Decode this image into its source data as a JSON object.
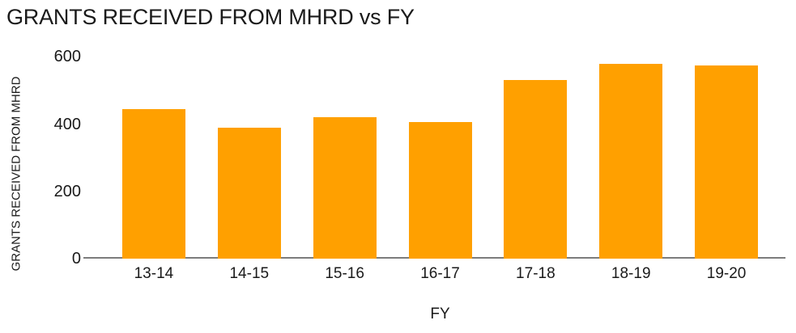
{
  "chart_data": {
    "type": "bar",
    "title": "GRANTS RECEIVED FROM MHRD vs FY",
    "xlabel": "FY",
    "ylabel": "GRANTS RECEIVED FROM MHRD",
    "categories": [
      "13-14",
      "14-15",
      "15-16",
      "16-17",
      "17-18",
      "18-19",
      "19-20"
    ],
    "values": [
      445,
      390,
      420,
      405,
      530,
      580,
      575
    ],
    "yticks": [
      0,
      200,
      400,
      600
    ],
    "ylim": [
      0,
      620
    ],
    "grid": false,
    "legend": false,
    "bar_color": "#FFA000",
    "axis_color": "#7C7C7C",
    "text_color": "#1A1A1A",
    "background": "#FFFFFF"
  }
}
